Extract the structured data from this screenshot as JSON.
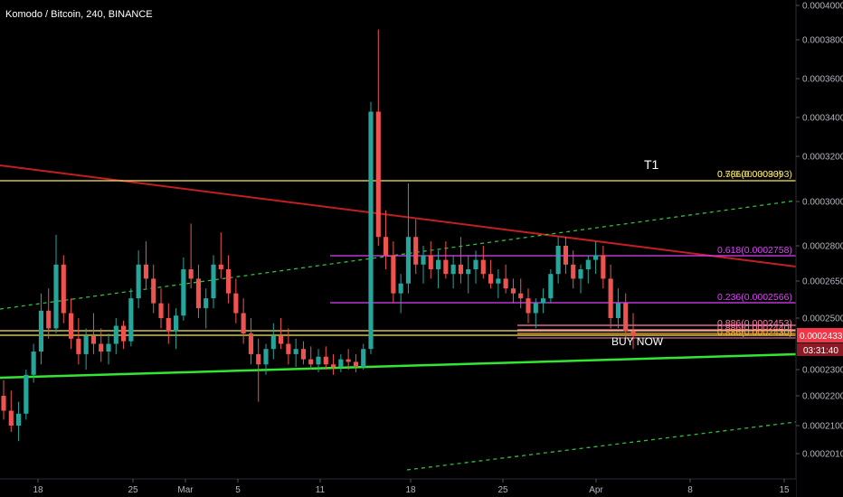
{
  "header": {
    "title": "Komodo / Bitcoin, 240, BINANCE"
  },
  "chart_data": {
    "type": "candlestick",
    "title": "Komodo / Bitcoin, 240, BINANCE",
    "ylim": [
      0.0002,
      0.0004
    ],
    "y_ticks": [
      "0.0004000",
      "0.0003800",
      "0.0003600",
      "0.0003400",
      "0.0003200",
      "0.0003000",
      "0.0002800",
      "0.0002650",
      "0.0002500",
      "0.0002300",
      "0.0002200",
      "0.0002100",
      "0.0002010"
    ],
    "x_ticks": [
      "18",
      "25",
      "Mar",
      "5",
      "11",
      "18",
      "25",
      "Apr",
      "8",
      "15"
    ],
    "last_price": {
      "value": "0.0002433",
      "timer": "03:31:40",
      "color": "#f23645"
    },
    "colors": {
      "up": "#26a69a",
      "down": "#ef5350",
      "background": "#000000"
    },
    "candles": [
      [
        0.00022,
        0.000226,
        0.000212,
        0.000215
      ],
      [
        0.000215,
        0.000222,
        0.000208,
        0.00021
      ],
      [
        0.00021,
        0.000218,
        0.000205,
        0.000214
      ],
      [
        0.000214,
        0.00023,
        0.000212,
        0.000228
      ],
      [
        0.000228,
        0.00024,
        0.000225,
        0.000237
      ],
      [
        0.000237,
        0.00026,
        0.000232,
        0.000253
      ],
      [
        0.000253,
        0.000262,
        0.000242,
        0.000246
      ],
      [
        0.000246,
        0.000285,
        0.000244,
        0.000272
      ],
      [
        0.000272,
        0.000276,
        0.000248,
        0.000252
      ],
      [
        0.000252,
        0.000258,
        0.000238,
        0.000242
      ],
      [
        0.000242,
        0.00025,
        0.000232,
        0.000236
      ],
      [
        0.000236,
        0.000246,
        0.00023,
        0.000243
      ],
      [
        0.000243,
        0.000252,
        0.000236,
        0.00024
      ],
      [
        0.00024,
        0.000246,
        0.000233,
        0.000237
      ],
      [
        0.000237,
        0.000244,
        0.000232,
        0.00024
      ],
      [
        0.00024,
        0.00025,
        0.000236,
        0.000247
      ],
      [
        0.000247,
        0.000249,
        0.000238,
        0.000241
      ],
      [
        0.000241,
        0.000262,
        0.000239,
        0.000258
      ],
      [
        0.000258,
        0.000278,
        0.000254,
        0.000272
      ],
      [
        0.000272,
        0.000282,
        0.000262,
        0.000266
      ],
      [
        0.000266,
        0.000272,
        0.000252,
        0.000256
      ],
      [
        0.000256,
        0.000262,
        0.000246,
        0.00025
      ],
      [
        0.00025,
        0.000256,
        0.00024,
        0.000245
      ],
      [
        0.000245,
        0.000254,
        0.000238,
        0.000251
      ],
      [
        0.000251,
        0.000275,
        0.000249,
        0.00027
      ],
      [
        0.00027,
        0.00029,
        0.000262,
        0.000266
      ],
      [
        0.000266,
        0.000272,
        0.00025,
        0.000254
      ],
      [
        0.000254,
        0.000262,
        0.000246,
        0.000258
      ],
      [
        0.000258,
        0.000276,
        0.000254,
        0.000272
      ],
      [
        0.000272,
        0.000286,
        0.000266,
        0.00027
      ],
      [
        0.00027,
        0.000276,
        0.000256,
        0.00026
      ],
      [
        0.00026,
        0.000266,
        0.000248,
        0.000252
      ],
      [
        0.000252,
        0.000258,
        0.00024,
        0.000244
      ],
      [
        0.000244,
        0.00025,
        0.000232,
        0.000236
      ],
      [
        0.000236,
        0.000242,
        0.000218,
        0.000232
      ],
      [
        0.000232,
        0.00024,
        0.000228,
        0.000238
      ],
      [
        0.000238,
        0.000248,
        0.000234,
        0.000243
      ],
      [
        0.000243,
        0.00025,
        0.000238,
        0.00024
      ],
      [
        0.00024,
        0.000246,
        0.000232,
        0.000236
      ],
      [
        0.000236,
        0.000242,
        0.000231,
        0.000238
      ],
      [
        0.000238,
        0.000241,
        0.000232,
        0.000234
      ],
      [
        0.000234,
        0.000239,
        0.00023,
        0.000232
      ],
      [
        0.000232,
        0.000238,
        0.000229,
        0.000235
      ],
      [
        0.000235,
        0.000239,
        0.00023,
        0.000232
      ],
      [
        0.000232,
        0.000236,
        0.000228,
        0.000231
      ],
      [
        0.000231,
        0.000236,
        0.000229,
        0.000234
      ],
      [
        0.000234,
        0.000238,
        0.00023,
        0.000233
      ],
      [
        0.000233,
        0.000236,
        0.000229,
        0.000231
      ],
      [
        0.000231,
        0.00024,
        0.00023,
        0.000238
      ],
      [
        0.000238,
        0.000348,
        0.000236,
        0.000343
      ],
      [
        0.000343,
        0.000386,
        0.00028,
        0.000284
      ],
      [
        0.000284,
        0.000296,
        0.00027,
        0.000276
      ],
      [
        0.000276,
        0.000282,
        0.000256,
        0.00026
      ],
      [
        0.00026,
        0.000268,
        0.000252,
        0.000264
      ],
      [
        0.000264,
        0.000308,
        0.00026,
        0.000284
      ],
      [
        0.000284,
        0.000292,
        0.000268,
        0.000272
      ],
      [
        0.000272,
        0.00028,
        0.000264,
        0.000276
      ],
      [
        0.000276,
        0.000282,
        0.000266,
        0.00027
      ],
      [
        0.00027,
        0.000278,
        0.000262,
        0.000274
      ],
      [
        0.000274,
        0.000282,
        0.000266,
        0.000268
      ],
      [
        0.000268,
        0.000276,
        0.000262,
        0.000272
      ],
      [
        0.000272,
        0.000284,
        0.000264,
        0.000268
      ],
      [
        0.000268,
        0.000276,
        0.00026,
        0.00027
      ],
      [
        0.00027,
        0.000278,
        0.000264,
        0.000274
      ],
      [
        0.000274,
        0.00028,
        0.000266,
        0.000268
      ],
      [
        0.000268,
        0.000274,
        0.000262,
        0.000264
      ],
      [
        0.000264,
        0.00027,
        0.000258,
        0.000266
      ],
      [
        0.000266,
        0.000272,
        0.00026,
        0.000262
      ],
      [
        0.000262,
        0.000266,
        0.000256,
        0.00026
      ],
      [
        0.00026,
        0.000266,
        0.000254,
        0.000258
      ],
      [
        0.000258,
        0.000262,
        0.000248,
        0.000252
      ],
      [
        0.000252,
        0.000258,
        0.000246,
        0.000256
      ],
      [
        0.000256,
        0.000262,
        0.000252,
        0.000258
      ],
      [
        0.000258,
        0.00027,
        0.000256,
        0.000268
      ],
      [
        0.000268,
        0.000284,
        0.000264,
        0.00028
      ],
      [
        0.00028,
        0.000284,
        0.000268,
        0.000272
      ],
      [
        0.000272,
        0.000278,
        0.000262,
        0.000266
      ],
      [
        0.000266,
        0.000272,
        0.00026,
        0.00027
      ],
      [
        0.00027,
        0.000276,
        0.000264,
        0.000274
      ],
      [
        0.000274,
        0.000282,
        0.000268,
        0.000276
      ],
      [
        0.000276,
        0.00028,
        0.000262,
        0.000266
      ],
      [
        0.000266,
        0.000272,
        0.000246,
        0.00025
      ],
      [
        0.00025,
        0.000262,
        0.000246,
        0.000256
      ],
      [
        0.000256,
        0.00026,
        0.000242,
        0.000245
      ],
      [
        0.000245,
        0.000252,
        0.000238,
        0.000243
      ]
    ]
  },
  "overlays": {
    "t1_label": "T1",
    "buy_now_label": "BUY NOW",
    "fib_levels": [
      {
        "label": "0.786(0.0003093)",
        "overlap_label": "0.5(0.0003093)",
        "color": "#f5e663"
      },
      {
        "label": "0.618(0.0002758)",
        "color": "#e040fb"
      },
      {
        "label": "0.236(0.0002566)",
        "color": "#e040fb"
      },
      {
        "label": "0.886(0.0002453)",
        "color": "#ff80ab"
      },
      {
        "label": "0.886(0.0002440)",
        "color": "#ff80ab"
      },
      {
        "label": "0.886(0.0002430)",
        "color": "#ffab40"
      }
    ],
    "line_colors": {
      "red_trendline": "#c21f1f",
      "green_support": "#33e633",
      "green_dashed": "#2fbf3a",
      "yellow": "#f5e663"
    }
  }
}
